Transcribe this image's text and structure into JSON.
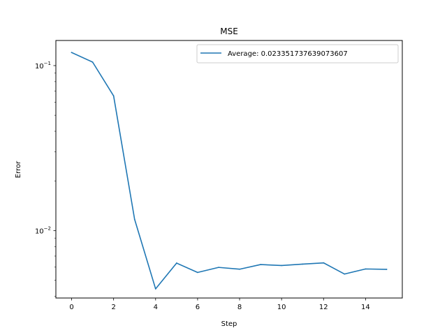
{
  "chart_data": {
    "type": "line",
    "title": "MSE",
    "xlabel": "Step",
    "ylabel": "Error",
    "yscale": "log",
    "xlim": [
      -0.75,
      15.75
    ],
    "ylim": [
      0.0039,
      0.142
    ],
    "xticks": [
      0,
      2,
      4,
      6,
      8,
      10,
      12,
      14
    ],
    "yticks": [
      {
        "value": 0.1,
        "base": "10",
        "exp": "−1"
      },
      {
        "value": 0.01,
        "base": "10",
        "exp": "−2"
      }
    ],
    "grid": false,
    "legend_position": "top-right",
    "series": [
      {
        "name": "Average: 0.023351737639073607",
        "color": "#1f77b4",
        "x": [
          0,
          1,
          2,
          3,
          4,
          5,
          6,
          7,
          8,
          9,
          10,
          11,
          12,
          13,
          14,
          15
        ],
        "y": [
          0.12,
          0.105,
          0.0655,
          0.0117,
          0.00443,
          0.00635,
          0.00557,
          0.00598,
          0.00583,
          0.00622,
          0.00614,
          0.00626,
          0.00637,
          0.00545,
          0.00585,
          0.00582
        ]
      }
    ]
  }
}
